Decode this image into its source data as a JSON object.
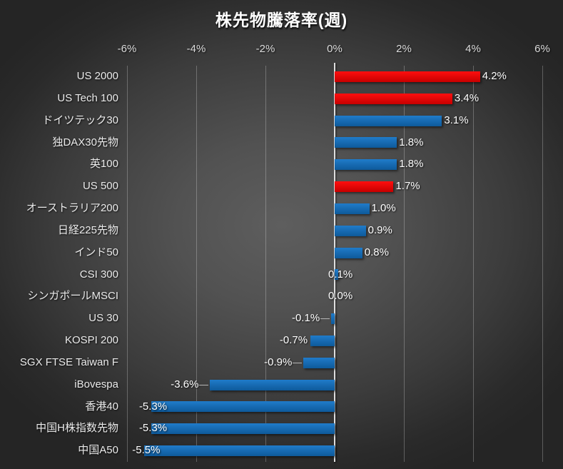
{
  "colors": {
    "us_bar_red": "#fe0000",
    "default_bar_blue": "#1273c6",
    "axis_line": "#dedede",
    "gridline_gray": "#6b6b6b",
    "text_white": "#ffffff",
    "tick_text": "#dcdcdc"
  },
  "chart_data": {
    "type": "bar",
    "orientation": "horizontal",
    "title": "株先物騰落率(週)",
    "xlabel": "",
    "ylabel": "",
    "xlim": [
      -6,
      6
    ],
    "grid": true,
    "legend": "none",
    "categories": [
      "US 2000",
      "US Tech 100",
      "ドイツテック30",
      "独DAX30先物",
      "英100",
      "US 500",
      "オーストラリア200",
      "日経225先物",
      "インド50",
      "CSI 300",
      "シンガポールMSCI",
      "US 30",
      "KOSPI 200",
      "SGX FTSE Taiwan F",
      "iBovespa",
      "香港40",
      "中国H株指数先物",
      "中国A50"
    ],
    "values": [
      4.2,
      3.4,
      3.1,
      1.8,
      1.8,
      1.7,
      1.0,
      0.9,
      0.8,
      0.1,
      0.0,
      -0.1,
      -0.7,
      -0.9,
      -3.6,
      -5.3,
      -5.3,
      -5.5
    ],
    "value_labels": [
      "4.2%",
      "3.4%",
      "3.1%",
      "1.8%",
      "1.8%",
      "1.7%",
      "1.0%",
      "0.9%",
      "0.8%",
      "0.1%",
      "0.0%",
      "-0.1%",
      "-0.7%",
      "-0.9%",
      "-3.6%",
      "-5.3%",
      "-5.3%",
      "-5.5%"
    ],
    "bar_colors": [
      "#fe0000",
      "#fe0000",
      "#1273c6",
      "#1273c6",
      "#1273c6",
      "#fe0000",
      "#1273c6",
      "#1273c6",
      "#1273c6",
      "#1273c6",
      "#1273c6",
      "#1273c6",
      "#1273c6",
      "#1273c6",
      "#1273c6",
      "#1273c6",
      "#1273c6",
      "#1273c6"
    ],
    "leader_lines": [
      false,
      false,
      false,
      false,
      false,
      false,
      false,
      false,
      false,
      false,
      false,
      true,
      false,
      true,
      true,
      false,
      false,
      false
    ],
    "xticks": {
      "labels": [
        "-6%",
        "-4%",
        "-2%",
        "0%",
        "2%",
        "4%",
        "6%"
      ],
      "values": [
        -6,
        -4,
        -2,
        0,
        2,
        4,
        6
      ]
    }
  }
}
